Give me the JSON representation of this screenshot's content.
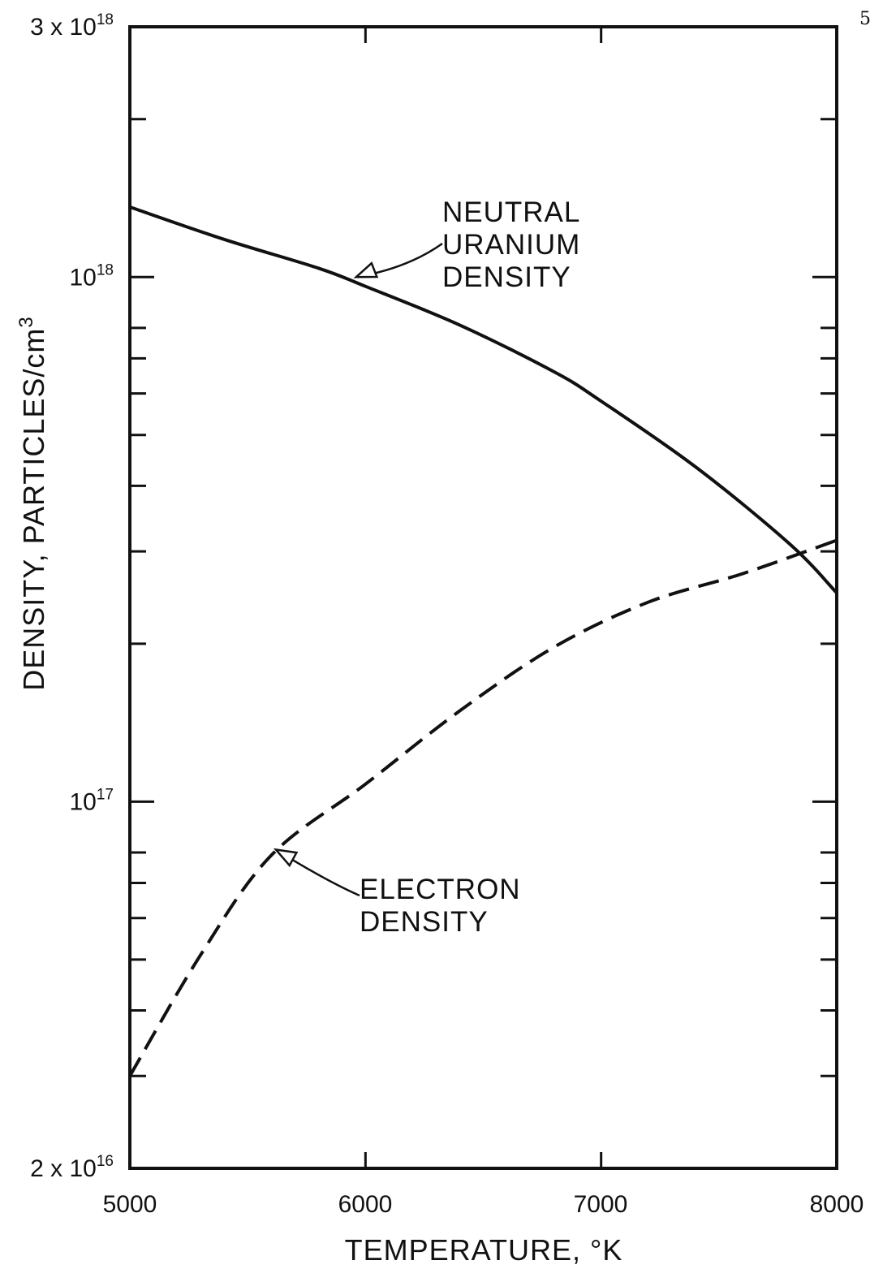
{
  "page_number": "5",
  "chart_data": {
    "type": "line",
    "title": "",
    "xlabel": "TEMPERATURE, °K",
    "ylabel": "DENSITY, PARTICLES/cm",
    "ylabel_superscript": "3",
    "y_scale": "log",
    "xlim": [
      5000,
      8000
    ],
    "ylim": [
      2e+16,
      3e+18
    ],
    "grid": false,
    "x_ticks": [
      "5000",
      "6000",
      "7000",
      "8000"
    ],
    "y_tick_labels": [
      {
        "value": 3e+18,
        "mantissa": "3 x 10",
        "exponent": "18"
      },
      {
        "value": 1e+18,
        "mantissa": "10",
        "exponent": "18"
      },
      {
        "value": 1e+17,
        "mantissa": "10",
        "exponent": "17"
      },
      {
        "value": 2e+16,
        "mantissa": "2 x 10",
        "exponent": "16"
      }
    ],
    "series": [
      {
        "label": [
          "NEUTRAL",
          "URANIUM",
          "DENSITY"
        ],
        "style": "solid",
        "x": [
          5000,
          5400,
          5800,
          6000,
          6400,
          6800,
          7000,
          7400,
          7800,
          8000
        ],
        "y": [
          1.36e+18,
          1.18e+18,
          1.04e+18,
          9.6e+17,
          8.1e+17,
          6.6e+17,
          5.8e+17,
          4.35e+17,
          3.1e+17,
          2.5e+17
        ]
      },
      {
        "label": [
          "ELECTRON",
          "DENSITY"
        ],
        "style": "dashed",
        "x": [
          5000,
          5300,
          5600,
          6000,
          6400,
          6800,
          7200,
          7600,
          8000
        ],
        "y": [
          3e+16,
          5.1e+16,
          7.9e+16,
          1.08e+17,
          1.49e+17,
          1.97e+17,
          2.4e+17,
          2.72e+17,
          3.15e+17
        ]
      }
    ],
    "annotations": [
      {
        "target": "NEUTRAL URANIUM DENSITY",
        "point": [
          5960,
          1e+18
        ]
      },
      {
        "target": "ELECTRON DENSITY",
        "point": [
          5620,
          8.1e+16
        ]
      }
    ]
  }
}
